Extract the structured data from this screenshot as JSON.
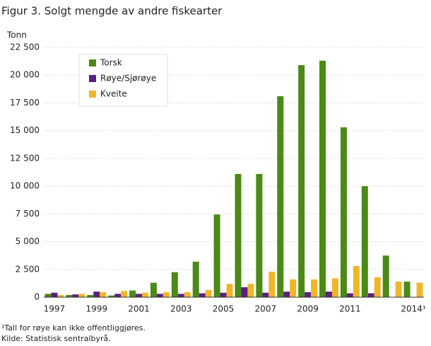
{
  "chart_data": {
    "type": "bar",
    "title": "Figur 3. Solgt mengde av andre fiskearter",
    "y_label": "Tonn",
    "categories": [
      "1997",
      null,
      "1999",
      null,
      "2001",
      null,
      "2003",
      null,
      "2005",
      null,
      "2007",
      null,
      "2009",
      null,
      "2011",
      null,
      null,
      "2014¹"
    ],
    "series": [
      {
        "name": "Torsk",
        "color": "#4b8a15",
        "values": [
          300,
          200,
          200,
          150,
          600,
          1300,
          2250,
          3200,
          7450,
          11100,
          11100,
          18100,
          20900,
          21300,
          15300,
          10000,
          3750,
          1400
        ]
      },
      {
        "name": "Røye/Sjørøye",
        "color": "#5a1f82",
        "values": [
          400,
          250,
          500,
          300,
          300,
          300,
          300,
          350,
          400,
          900,
          400,
          500,
          450,
          500,
          350,
          350,
          null,
          null
        ]
      },
      {
        "name": "Kveite",
        "color": "#f0b628",
        "values": [
          200,
          300,
          450,
          550,
          400,
          450,
          450,
          650,
          1200,
          1200,
          2300,
          1600,
          1600,
          1700,
          2800,
          1800,
          1400,
          1300
        ]
      }
    ],
    "ylim": [
      0,
      22500
    ],
    "yticks": [
      0,
      {
        "value": 2500,
        "label": "2 500"
      },
      {
        "value": 5000,
        "label": "5 000"
      },
      {
        "value": 7500,
        "label": "7 500"
      },
      {
        "value": 10000,
        "label": "10 000"
      },
      {
        "value": 12500,
        "label": "12 500"
      },
      {
        "value": 15000,
        "label": "15 000"
      },
      {
        "value": 17500,
        "label": "17 500"
      },
      {
        "value": 20000,
        "label": "20 000"
      },
      {
        "value": 22500,
        "label": "22 500"
      }
    ],
    "grid": true,
    "legend": "upper left",
    "footnotes": [
      "¹Tall for røye kan ikke offentliggjøres.",
      "Kilde: Statistisk sentralbyrå."
    ]
  }
}
